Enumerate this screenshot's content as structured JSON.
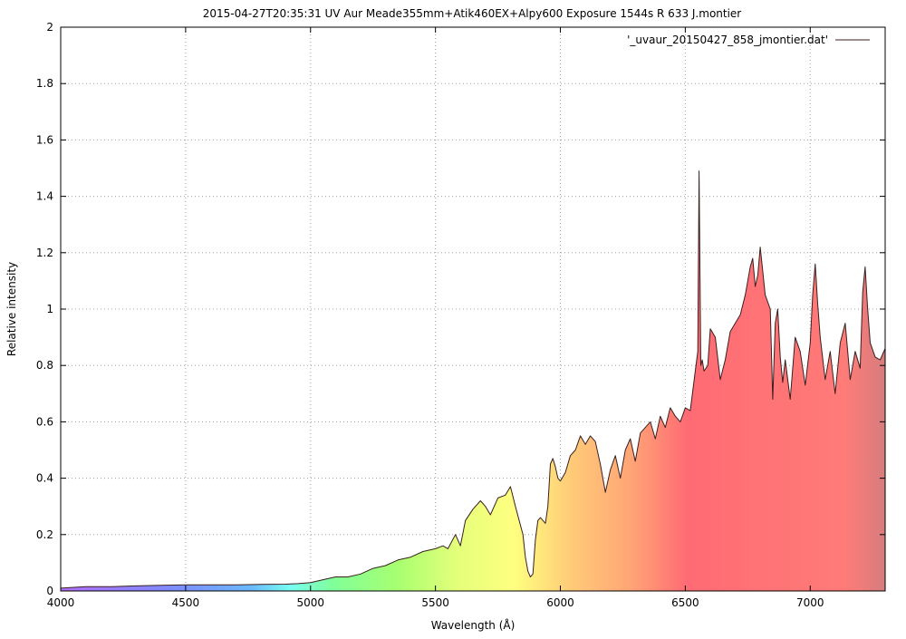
{
  "chart_data": {
    "type": "area",
    "title": "2015-04-27T20:35:31 UV Aur Meade355mm+Atik460EX+Alpy600 Exposure 1544s R 633 J.montier",
    "xlabel": "Wavelength (Å)",
    "ylabel": "Relative intensity",
    "xlim": [
      4000,
      7300
    ],
    "ylim": [
      0,
      2
    ],
    "x_ticks": [
      4000,
      4500,
      5000,
      5500,
      6000,
      6500,
      7000
    ],
    "y_ticks": [
      0,
      0.2,
      0.4,
      0.6,
      0.8,
      1,
      1.2,
      1.4,
      1.6,
      1.8,
      2
    ],
    "y_tick_labels": [
      "0",
      "0.2",
      "0.4",
      "0.6",
      "0.8",
      "1",
      "1.2",
      "1.4",
      "1.6",
      "1.8",
      "2"
    ],
    "grid": true,
    "legend_position": "top-right",
    "colors": {
      "line": "#3a1f1f",
      "grid": "#a0a0a0"
    },
    "series": [
      {
        "name": "'_uvaur_20150427_858_jmontier.dat'",
        "x": [
          4000,
          4100,
          4200,
          4300,
          4400,
          4500,
          4600,
          4700,
          4800,
          4900,
          4950,
          5000,
          5050,
          5100,
          5150,
          5200,
          5250,
          5300,
          5350,
          5400,
          5450,
          5500,
          5530,
          5550,
          5580,
          5600,
          5620,
          5650,
          5680,
          5700,
          5720,
          5750,
          5780,
          5800,
          5820,
          5850,
          5860,
          5870,
          5880,
          5890,
          5900,
          5910,
          5920,
          5940,
          5950,
          5960,
          5970,
          5980,
          5990,
          6000,
          6020,
          6040,
          6060,
          6080,
          6100,
          6120,
          6140,
          6160,
          6180,
          6200,
          6220,
          6240,
          6260,
          6280,
          6300,
          6320,
          6340,
          6360,
          6380,
          6400,
          6420,
          6440,
          6460,
          6480,
          6500,
          6520,
          6540,
          6550,
          6555,
          6562,
          6568,
          6575,
          6590,
          6600,
          6620,
          6640,
          6660,
          6680,
          6700,
          6720,
          6740,
          6760,
          6770,
          6780,
          6790,
          6800,
          6820,
          6840,
          6850,
          6860,
          6870,
          6880,
          6890,
          6900,
          6920,
          6940,
          6960,
          6980,
          7000,
          7010,
          7020,
          7030,
          7040,
          7060,
          7080,
          7100,
          7120,
          7140,
          7160,
          7180,
          7200,
          7210,
          7220,
          7230,
          7240,
          7260,
          7280,
          7300
        ],
        "y": [
          0.01,
          0.015,
          0.015,
          0.018,
          0.02,
          0.022,
          0.022,
          0.022,
          0.023,
          0.024,
          0.026,
          0.03,
          0.04,
          0.05,
          0.05,
          0.06,
          0.08,
          0.09,
          0.11,
          0.12,
          0.14,
          0.15,
          0.16,
          0.15,
          0.2,
          0.16,
          0.25,
          0.29,
          0.32,
          0.3,
          0.27,
          0.33,
          0.34,
          0.37,
          0.3,
          0.2,
          0.12,
          0.07,
          0.05,
          0.06,
          0.18,
          0.25,
          0.26,
          0.24,
          0.3,
          0.45,
          0.47,
          0.44,
          0.4,
          0.39,
          0.42,
          0.48,
          0.5,
          0.55,
          0.52,
          0.55,
          0.53,
          0.45,
          0.35,
          0.43,
          0.48,
          0.4,
          0.5,
          0.54,
          0.46,
          0.56,
          0.58,
          0.6,
          0.54,
          0.62,
          0.58,
          0.65,
          0.62,
          0.6,
          0.65,
          0.64,
          0.78,
          0.85,
          1.49,
          0.8,
          0.82,
          0.78,
          0.8,
          0.93,
          0.9,
          0.75,
          0.82,
          0.92,
          0.95,
          0.98,
          1.05,
          1.15,
          1.18,
          1.08,
          1.12,
          1.22,
          1.05,
          1.0,
          0.68,
          0.95,
          1.0,
          0.83,
          0.74,
          0.82,
          0.68,
          0.9,
          0.85,
          0.73,
          0.88,
          1.05,
          1.16,
          1.02,
          0.9,
          0.75,
          0.85,
          0.7,
          0.88,
          0.95,
          0.75,
          0.85,
          0.79,
          1.06,
          1.15,
          1.0,
          0.88,
          0.83,
          0.82,
          0.86
        ]
      }
    ]
  }
}
